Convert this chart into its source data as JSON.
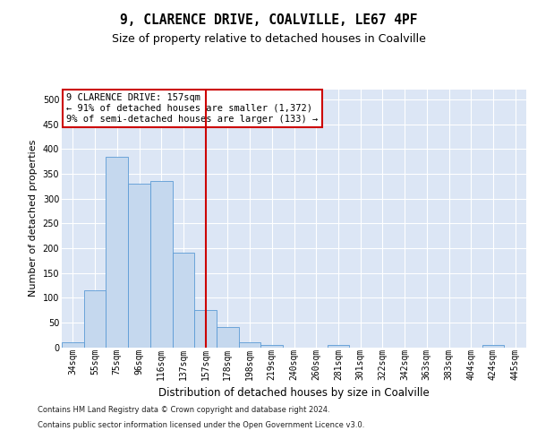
{
  "title": "9, CLARENCE DRIVE, COALVILLE, LE67 4PF",
  "subtitle": "Size of property relative to detached houses in Coalville",
  "xlabel": "Distribution of detached houses by size in Coalville",
  "ylabel": "Number of detached properties",
  "categories": [
    "34sqm",
    "55sqm",
    "75sqm",
    "96sqm",
    "116sqm",
    "137sqm",
    "157sqm",
    "178sqm",
    "198sqm",
    "219sqm",
    "240sqm",
    "260sqm",
    "281sqm",
    "301sqm",
    "322sqm",
    "342sqm",
    "363sqm",
    "383sqm",
    "404sqm",
    "424sqm",
    "445sqm"
  ],
  "values": [
    10,
    115,
    385,
    330,
    335,
    190,
    75,
    40,
    10,
    5,
    0,
    0,
    5,
    0,
    0,
    0,
    0,
    0,
    0,
    5,
    0
  ],
  "bar_color": "#c5d8ee",
  "bar_edge_color": "#5b9bd5",
  "red_line_index": 6,
  "annotation_text": "9 CLARENCE DRIVE: 157sqm\n← 91% of detached houses are smaller (1,372)\n9% of semi-detached houses are larger (133) →",
  "annotation_box_facecolor": "#ffffff",
  "annotation_box_edgecolor": "#cc0000",
  "footer_line1": "Contains HM Land Registry data © Crown copyright and database right 2024.",
  "footer_line2": "Contains public sector information licensed under the Open Government Licence v3.0.",
  "ylim_max": 520,
  "yticks": [
    0,
    50,
    100,
    150,
    200,
    250,
    300,
    350,
    400,
    450,
    500
  ],
  "plot_bg_color": "#dce6f5",
  "figure_bg_color": "#ffffff",
  "grid_color": "#ffffff",
  "title_fontsize": 10.5,
  "subtitle_fontsize": 9,
  "ylabel_fontsize": 8,
  "xlabel_fontsize": 8.5,
  "tick_fontsize": 7,
  "footer_fontsize": 6,
  "annot_fontsize": 7.5
}
